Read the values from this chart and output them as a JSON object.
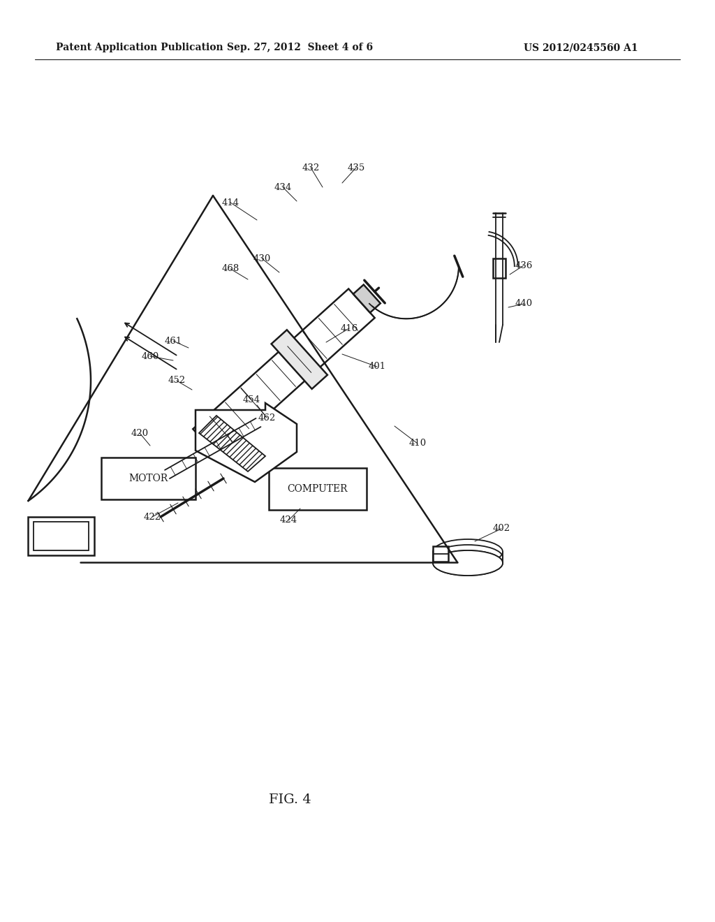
{
  "bg_color": "#ffffff",
  "line_color": "#1a1a1a",
  "header_left": "Patent Application Publication",
  "header_mid": "Sep. 27, 2012  Sheet 4 of 6",
  "header_right": "US 2012/0245560 A1",
  "fig_label": "FIG. 4"
}
